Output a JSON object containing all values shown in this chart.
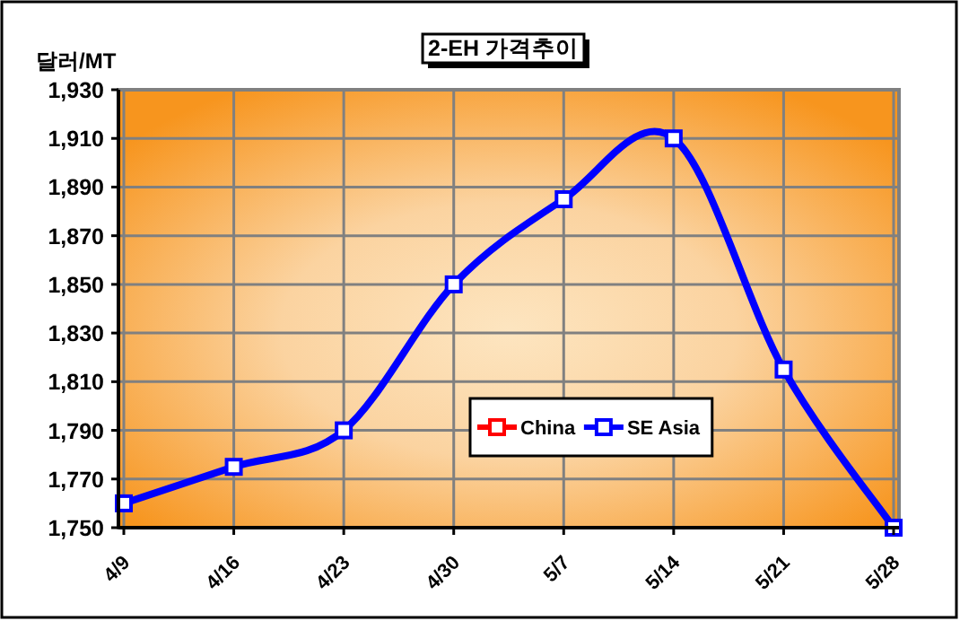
{
  "chart_data": {
    "type": "line",
    "title": "2-EH 가격추이",
    "ylabel": "달러/MT",
    "categories": [
      "4/9",
      "4/16",
      "4/23",
      "4/30",
      "5/7",
      "5/14",
      "5/21",
      "5/28"
    ],
    "series": [
      {
        "name": "China",
        "color": "#ff0000",
        "values": [
          null,
          null,
          null,
          null,
          null,
          null,
          null,
          null
        ]
      },
      {
        "name": "SE Asia",
        "color": "#0000ff",
        "values": [
          1760,
          1775,
          1790,
          1850,
          1885,
          1910,
          1815,
          1750
        ]
      }
    ],
    "ylim": [
      1750,
      1930
    ],
    "yticks": [
      {
        "value": 1750,
        "label": "1,750"
      },
      {
        "value": 1770,
        "label": "1,770"
      },
      {
        "value": 1790,
        "label": "1,790"
      },
      {
        "value": 1810,
        "label": "1,810"
      },
      {
        "value": 1830,
        "label": "1,830"
      },
      {
        "value": 1850,
        "label": "1,850"
      },
      {
        "value": 1870,
        "label": "1,870"
      },
      {
        "value": 1890,
        "label": "1,890"
      },
      {
        "value": 1910,
        "label": "1,910"
      },
      {
        "value": 1930,
        "label": "1,930"
      }
    ],
    "grid": true,
    "legend": "bottom right",
    "marker": "square",
    "line_style": "solid"
  }
}
